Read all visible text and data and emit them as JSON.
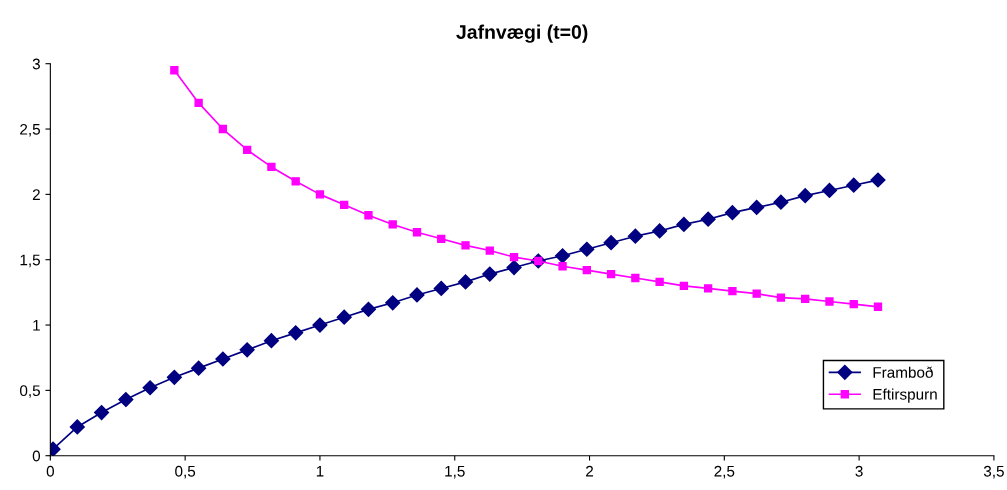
{
  "chart_data": {
    "type": "line",
    "title": "Jafnvægi (t=0)",
    "x": [
      0.01,
      0.1,
      0.19,
      0.28,
      0.37,
      0.46,
      0.55,
      0.64,
      0.73,
      0.82,
      0.91,
      1.0,
      1.09,
      1.18,
      1.27,
      1.36,
      1.45,
      1.54,
      1.63,
      1.72,
      1.81,
      1.9,
      1.99,
      2.08,
      2.17,
      2.26,
      2.35,
      2.44,
      2.53,
      2.62,
      2.71,
      2.8,
      2.89,
      2.98,
      3.07
    ],
    "series": [
      {
        "name": "Framboð",
        "color": "#000080",
        "marker": "diamond",
        "values": [
          0.05,
          0.22,
          0.33,
          0.43,
          0.52,
          0.6,
          0.67,
          0.74,
          0.81,
          0.88,
          0.94,
          1.0,
          1.06,
          1.12,
          1.17,
          1.23,
          1.28,
          1.33,
          1.39,
          1.44,
          1.49,
          1.53,
          1.58,
          1.63,
          1.68,
          1.72,
          1.77,
          1.81,
          1.86,
          1.9,
          1.94,
          1.99,
          2.03,
          2.07,
          2.11
        ]
      },
      {
        "name": "Eftirspurn",
        "color": "#ff00ff",
        "marker": "square",
        "values": [
          null,
          null,
          null,
          null,
          null,
          2.95,
          2.7,
          2.5,
          2.34,
          2.21,
          2.1,
          2.0,
          1.92,
          1.84,
          1.77,
          1.71,
          1.66,
          1.61,
          1.57,
          1.52,
          1.49,
          1.45,
          1.42,
          1.39,
          1.36,
          1.33,
          1.3,
          1.28,
          1.26,
          1.24,
          1.21,
          1.2,
          1.18,
          1.16,
          1.14
        ]
      }
    ],
    "xlim": [
      0,
      3.5
    ],
    "xticks": [
      0,
      {
        "value": 0.5,
        "label": "0,5"
      },
      1,
      {
        "value": 1.5,
        "label": "1,5"
      },
      2,
      {
        "value": 2.5,
        "label": "2,5"
      },
      3,
      {
        "value": 3.5,
        "label": "3,5"
      }
    ],
    "ylim": [
      0,
      3
    ],
    "yticks": [
      0,
      {
        "value": 0.5,
        "label": "0,5"
      },
      1,
      {
        "value": 1.5,
        "label": "1,5"
      },
      2,
      {
        "value": 2.5,
        "label": "2,5"
      },
      3
    ],
    "grid": false,
    "legend": "bottom right"
  }
}
